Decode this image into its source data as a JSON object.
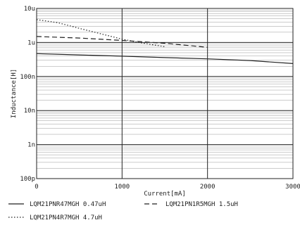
{
  "chart_data": {
    "type": "line",
    "xlabel": "Current[mA]",
    "ylabel": "Inductance[H]",
    "x_scale": "linear",
    "y_scale": "log",
    "xlim": [
      0,
      3000
    ],
    "ylim": [
      1e-10,
      1e-05
    ],
    "x_tick_labels": [
      "0",
      "1000",
      "2000",
      "3000"
    ],
    "x_tick_values": [
      0,
      1000,
      2000,
      3000
    ],
    "y_tick_labels": [
      "100p",
      "1n",
      "10n",
      "100n",
      "1u",
      "10u"
    ],
    "y_tick_values": [
      1e-10,
      1e-09,
      1e-08,
      1e-07,
      1e-06,
      1e-05
    ],
    "grid": true,
    "legend_position": "bottom",
    "series": [
      {
        "name": "LQM21PNR47MGH 0.47uH",
        "style": "solid",
        "x": [
          0,
          500,
          1000,
          1500,
          2000,
          2500,
          3000
        ],
        "y": [
          4.7e-07,
          4.3e-07,
          3.95e-07,
          3.6e-07,
          3.3e-07,
          2.95e-07,
          2.4e-07
        ]
      },
      {
        "name": "LQM21PN1R5MGH 1.5uH",
        "style": "dashed",
        "x": [
          0,
          500,
          1000,
          1500,
          2000
        ],
        "y": [
          1.5e-06,
          1.35e-06,
          1.15e-06,
          9.5e-07,
          7.2e-07
        ]
      },
      {
        "name": "LQM21PN4R7MGH 4.7uH",
        "style": "dotted",
        "x": [
          0,
          250,
          500,
          750,
          1000,
          1250,
          1500
        ],
        "y": [
          4.7e-06,
          3.8e-06,
          2.6e-06,
          1.8e-06,
          1.25e-06,
          9.5e-07,
          7.5e-07
        ]
      }
    ]
  }
}
